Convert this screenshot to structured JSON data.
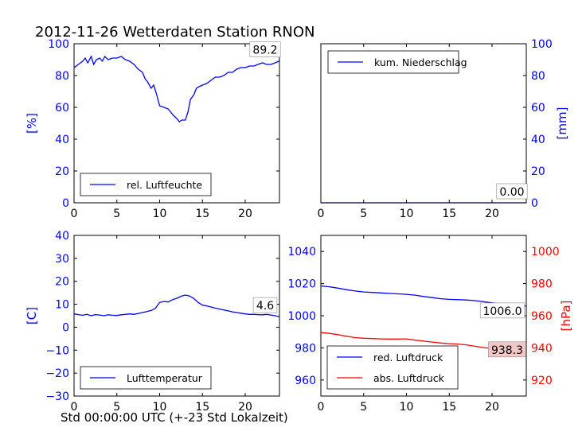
{
  "figure": {
    "title": "2012-11-26 Wetterdaten Station RNON",
    "xcaption": "Std 00:00:00 UTC (+-23 Std Lokalzeit)"
  },
  "colors": {
    "left_axis": "#0000ff",
    "right_axis_pressure": "#ff0000",
    "blue_series": "#0000ff",
    "red_series": "#ff0000"
  },
  "chart_data": [
    {
      "type": "line",
      "panel": "top-left",
      "xlim": [
        0,
        24
      ],
      "xticks": [
        0,
        5,
        10,
        15,
        20
      ],
      "ylim": [
        0,
        100
      ],
      "yticks": [
        0,
        20,
        40,
        60,
        80,
        100
      ],
      "ylabel": "[%]",
      "ylabel_side": "left",
      "legend_placement": "lower-left",
      "value_box": "89.2",
      "series": [
        {
          "name": "rel. Luftfeuchte",
          "color": "#0000ff",
          "x": [
            0,
            0.5,
            1,
            1.3,
            1.6,
            2,
            2.3,
            2.6,
            3,
            3.3,
            3.6,
            4,
            4.5,
            5,
            5.5,
            6,
            6.5,
            7,
            7.5,
            8,
            8.3,
            8.6,
            9,
            9.3,
            9.6,
            10,
            10.5,
            11,
            11.3,
            11.6,
            12,
            12.3,
            12.6,
            13,
            13.3,
            13.6,
            14,
            14.3,
            14.6,
            15,
            15.5,
            16,
            16.5,
            17,
            17.5,
            18,
            18.5,
            19,
            19.5,
            20,
            20.5,
            21,
            21.5,
            22,
            22.5,
            23,
            23.5,
            24
          ],
          "values": [
            85,
            87,
            89,
            91,
            88,
            92,
            87,
            90,
            91,
            89,
            92,
            90,
            91,
            91,
            92,
            90,
            89,
            87,
            84,
            82,
            78,
            76,
            72,
            74,
            69,
            61,
            60,
            59,
            57,
            55,
            53,
            51,
            52,
            52,
            57,
            65,
            68,
            72,
            73,
            74,
            75,
            77,
            79,
            79,
            80,
            82,
            82,
            84,
            85,
            85,
            86,
            86,
            87,
            88,
            87,
            87,
            88,
            89.2
          ]
        }
      ]
    },
    {
      "type": "line",
      "panel": "top-right",
      "xlim": [
        0,
        24
      ],
      "xticks": [
        0,
        5,
        10,
        15,
        20
      ],
      "ylim": [
        0,
        100
      ],
      "yticks": [
        0,
        20,
        40,
        60,
        80,
        100
      ],
      "ylabel": "[mm]",
      "ylabel_side": "right",
      "legend_placement": "upper-left",
      "value_box": "0.00",
      "series": [
        {
          "name": "kum. Niederschlag",
          "color": "#0000ff",
          "x": [
            0,
            24
          ],
          "values": [
            0,
            0
          ]
        }
      ]
    },
    {
      "type": "line",
      "panel": "bottom-left",
      "xlim": [
        0,
        24
      ],
      "xticks": [
        0,
        5,
        10,
        15,
        20
      ],
      "ylim": [
        -30,
        40
      ],
      "yticks": [
        -30,
        -20,
        -10,
        0,
        10,
        20,
        30,
        40
      ],
      "ylabel": "[C]",
      "ylabel_side": "left",
      "legend_placement": "lower-left",
      "value_box": "4.6",
      "series": [
        {
          "name": "Lufttemperatur",
          "color": "#0000ff",
          "x": [
            0,
            0.5,
            1,
            1.5,
            2,
            2.5,
            3,
            3.5,
            4,
            4.5,
            5,
            5.5,
            6,
            6.5,
            7,
            7.5,
            8,
            8.5,
            9,
            9.5,
            10,
            10.5,
            11,
            11.5,
            12,
            12.5,
            13,
            13.5,
            14,
            14.5,
            15,
            15.5,
            16,
            16.5,
            17,
            17.5,
            18,
            18.5,
            19,
            19.5,
            20,
            20.5,
            21,
            21.5,
            22,
            22.5,
            23,
            23.5,
            24
          ],
          "values": [
            5.8,
            5.5,
            5.2,
            5.6,
            5,
            5.5,
            5.3,
            5.0,
            5.4,
            5.2,
            5.1,
            5.4,
            5.6,
            5.8,
            5.6,
            6,
            6.4,
            6.8,
            7.3,
            8.2,
            10.8,
            11.2,
            11,
            12,
            12.6,
            13.5,
            14,
            13.6,
            12.5,
            10.8,
            9.6,
            9.3,
            8.8,
            8.3,
            7.9,
            7.5,
            7.1,
            6.7,
            6.4,
            6.1,
            5.8,
            5.6,
            5.6,
            5.5,
            5.4,
            5.6,
            5.3,
            5.0,
            4.6
          ]
        }
      ]
    },
    {
      "type": "line",
      "panel": "bottom-right",
      "xlim": [
        0,
        24
      ],
      "xticks": [
        0,
        5,
        10,
        15,
        20
      ],
      "ylim": [
        950,
        1050
      ],
      "yticks": [
        960,
        980,
        1000,
        1020,
        1040
      ],
      "ylim_right": [
        910,
        1010
      ],
      "yticks_right": [
        920,
        940,
        960,
        980,
        1000
      ],
      "ylabel_right": "[hPa]",
      "legend_placement": "lower-left",
      "value_box_blue": "1006.0",
      "value_box_red": "938.3",
      "series": [
        {
          "name": "red. Luftdruck",
          "color": "#0000ff",
          "axis": "left",
          "x": [
            0,
            1,
            2,
            3,
            4,
            5,
            6,
            7,
            8,
            9,
            10,
            11,
            12,
            13,
            14,
            15,
            16,
            17,
            18,
            19,
            20,
            21,
            22,
            23,
            24
          ],
          "values": [
            1018.5,
            1018,
            1017.2,
            1016.2,
            1015.4,
            1014.8,
            1014.5,
            1014.2,
            1013.9,
            1013.6,
            1013.3,
            1012.8,
            1012,
            1011.3,
            1010.6,
            1010.2,
            1010,
            1009.8,
            1009.4,
            1008.7,
            1008,
            1007.6,
            1007.2,
            1006.8,
            1006.0
          ]
        },
        {
          "name": "abs. Luftdruck",
          "color": "#ff0000",
          "axis": "right",
          "x": [
            0,
            1,
            2,
            3,
            4,
            5,
            6,
            7,
            8,
            9,
            10,
            11,
            12,
            13,
            14,
            15,
            16,
            17,
            18,
            19,
            20,
            21,
            22,
            23,
            24
          ],
          "values": [
            949.5,
            949,
            948.2,
            947.2,
            946.4,
            946,
            945.8,
            945.6,
            945.5,
            945.5,
            945.6,
            944.8,
            944.2,
            943.6,
            943,
            942.6,
            942.4,
            941.9,
            941,
            940.2,
            939.5,
            939.2,
            938.8,
            938.5,
            938.3
          ]
        }
      ]
    }
  ]
}
